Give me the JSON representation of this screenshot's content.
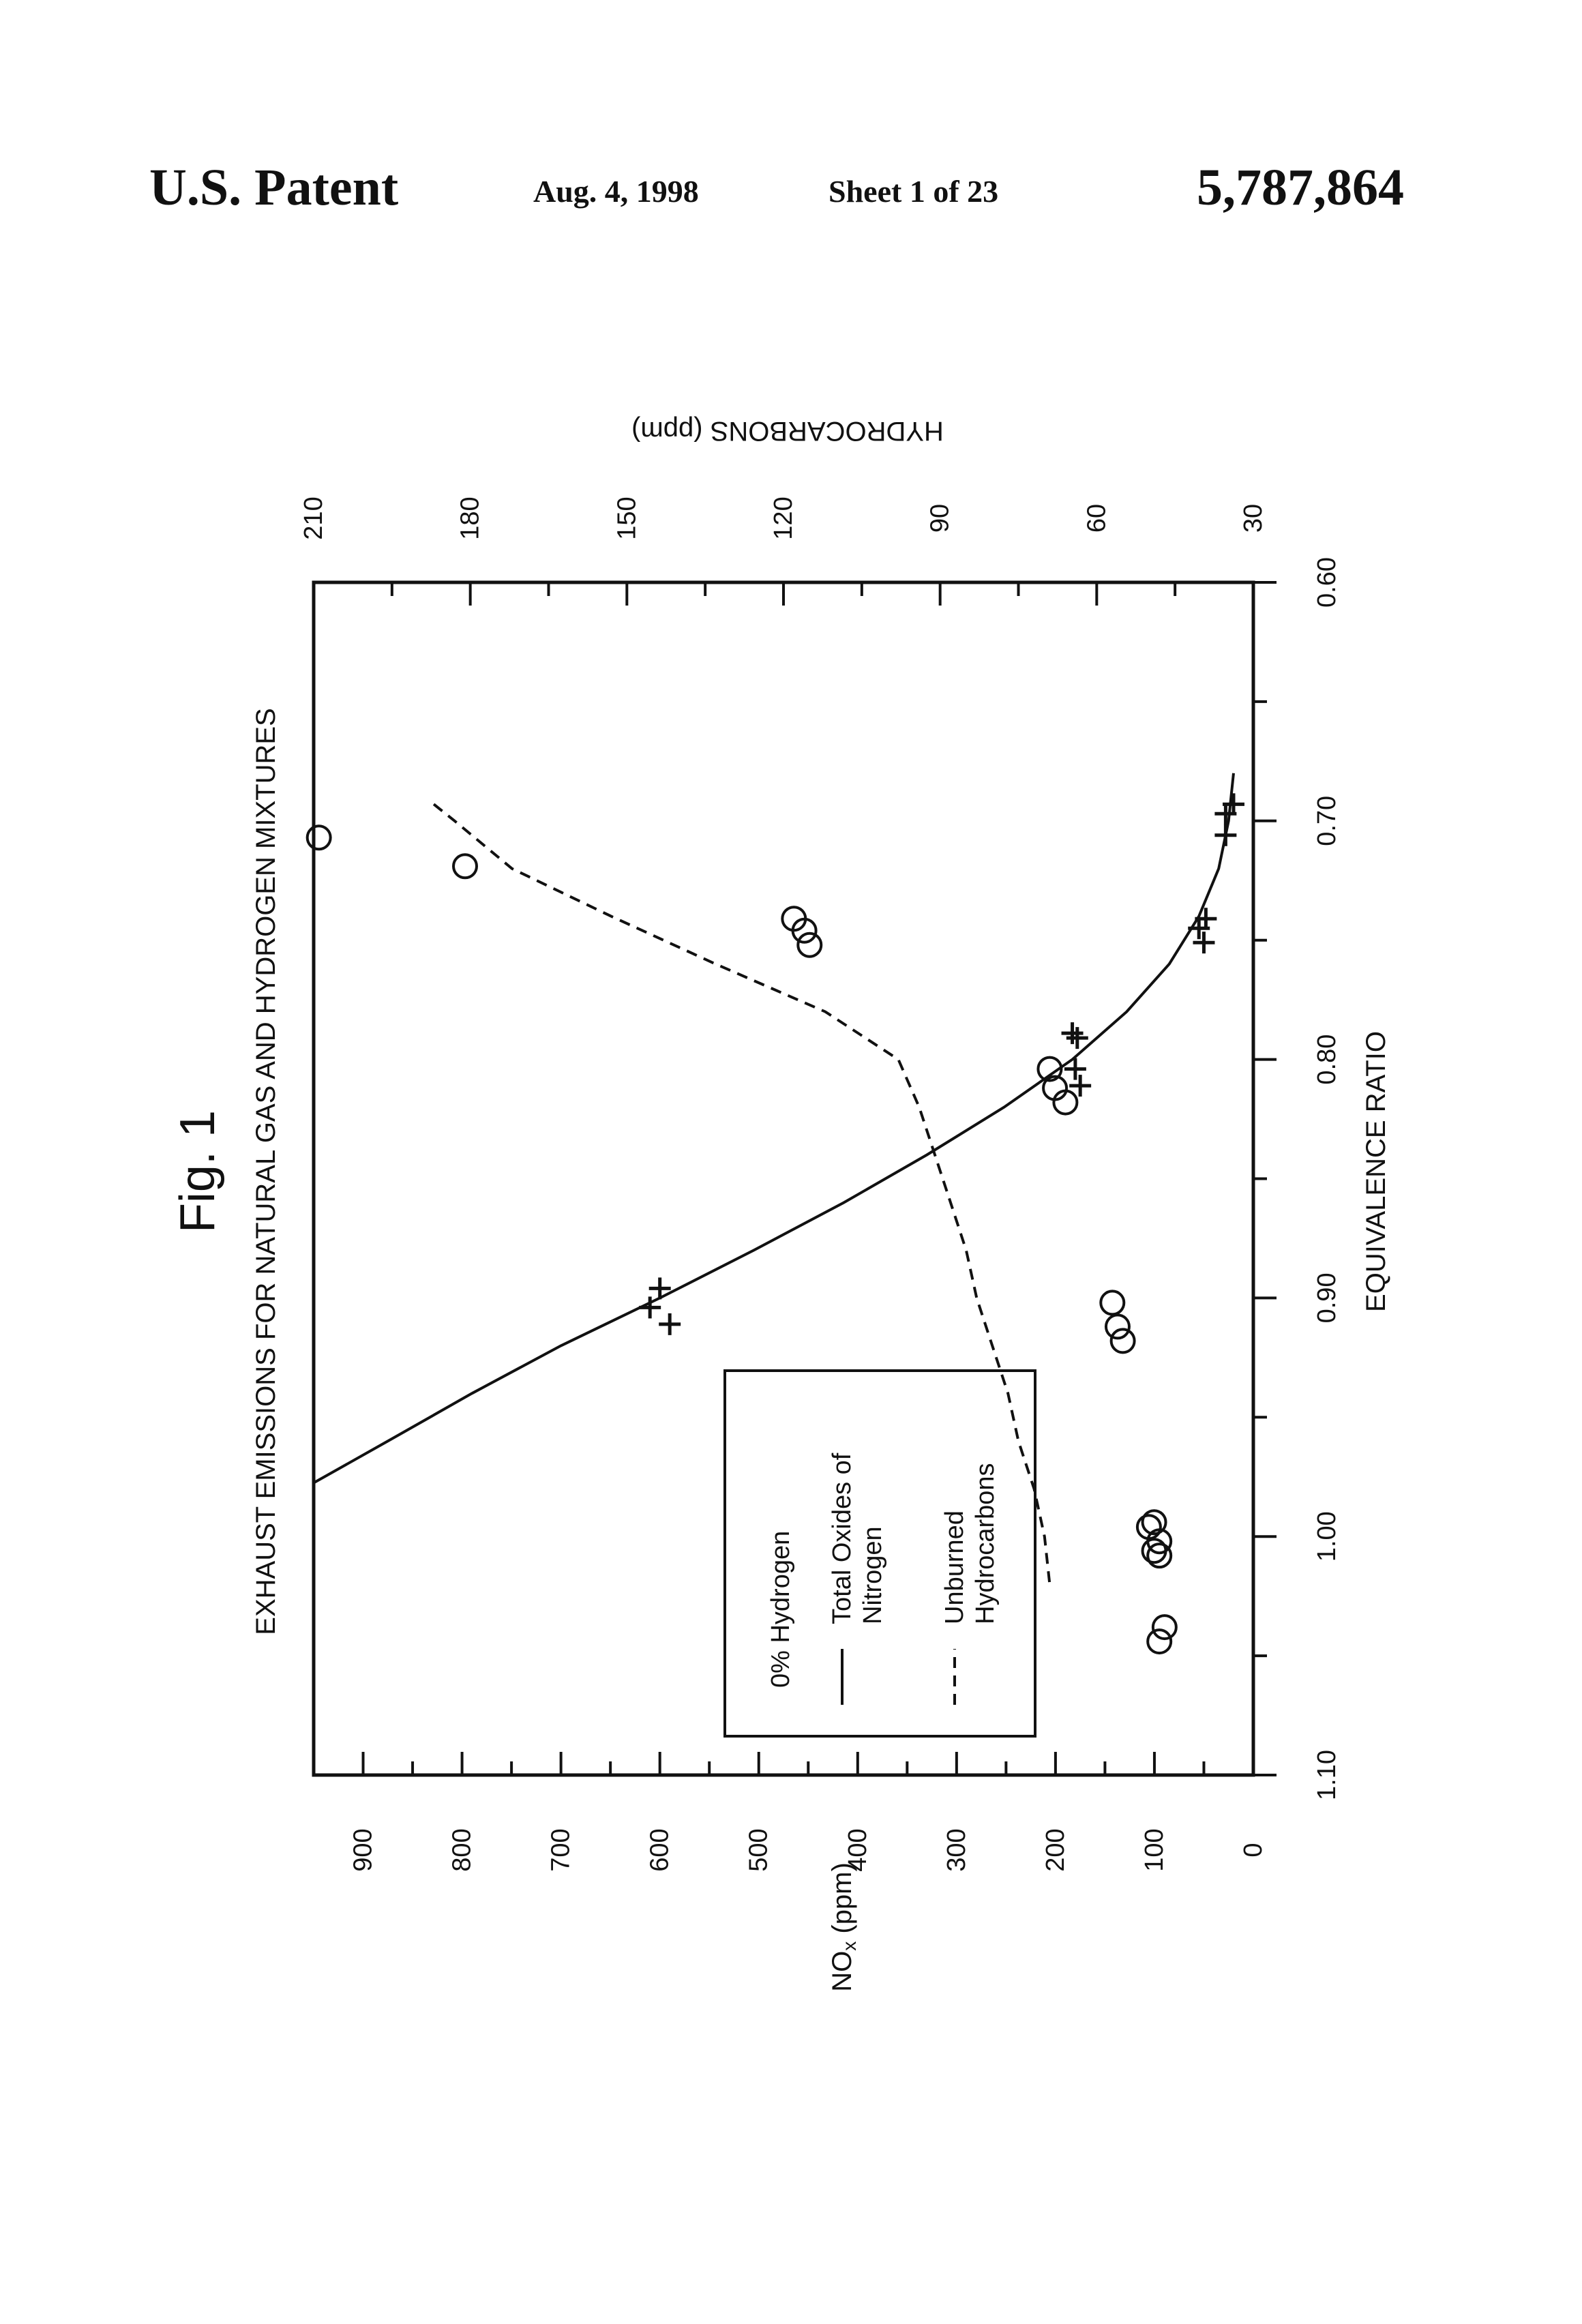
{
  "header": {
    "patent": "U.S. Patent",
    "date": "Aug. 4, 1998",
    "sheet": "Sheet 1 of 23",
    "number": "5,787,864"
  },
  "figure": {
    "label": "Fig. 1",
    "title": "EXHAUST EMISSIONS FOR NATURAL GAS AND HYDROGEN MIXTURES"
  },
  "chart_data": {
    "type": "line",
    "title": "EXHAUST EMISSIONS FOR NATURAL GAS AND HYDROGEN MIXTURES",
    "orientation": "figure printed rotated 90 degrees counter-clockwise",
    "xlabel": "EQUIVALENCE RATIO",
    "ylabel_left": "NOx (ppm)",
    "ylabel_right": "HYDROCARBONS (ppm)",
    "xlim": [
      0.6,
      1.1
    ],
    "x_reversed": true,
    "ylim_left": [
      0,
      950
    ],
    "ylim_right": [
      30,
      210
    ],
    "x_ticks": [
      "0.60",
      "0.70",
      "0.80",
      "0.90",
      "1.00",
      "1.10"
    ],
    "y_left_ticks": [
      "0",
      "100",
      "200",
      "300",
      "400",
      "500",
      "600",
      "700",
      "800",
      "900"
    ],
    "y_right_ticks": [
      "30",
      "60",
      "90",
      "120",
      "150",
      "180",
      "210"
    ],
    "grid": false,
    "legend": {
      "title": "0% Hydrogen",
      "entries": [
        {
          "symbol": "solid",
          "label_lines": [
            "Total Oxides of",
            "Nitrogen"
          ]
        },
        {
          "symbol": "dashed",
          "label_lines": [
            "Unburned",
            "Hydrocarbons"
          ]
        }
      ]
    },
    "series": [
      {
        "name": "Total Oxides of Nitrogen",
        "axis": "left",
        "marker": "+",
        "line": "solid",
        "curve": [
          [
            0.68,
            20
          ],
          [
            0.7,
            25
          ],
          [
            0.72,
            35
          ],
          [
            0.74,
            55
          ],
          [
            0.76,
            85
          ],
          [
            0.78,
            128
          ],
          [
            0.8,
            183
          ],
          [
            0.82,
            252
          ],
          [
            0.84,
            330
          ],
          [
            0.86,
            414
          ],
          [
            0.88,
            505
          ],
          [
            0.9,
            600
          ],
          [
            0.92,
            700
          ],
          [
            0.94,
            790
          ],
          [
            0.96,
            875
          ],
          [
            0.9775,
            950
          ]
        ],
        "points": [
          [
            0.693,
            20
          ],
          [
            0.697,
            28
          ],
          [
            0.706,
            28
          ],
          [
            0.741,
            48
          ],
          [
            0.745,
            55
          ],
          [
            0.751,
            50
          ],
          [
            0.789,
            183
          ],
          [
            0.791,
            178
          ],
          [
            0.804,
            180
          ],
          [
            0.811,
            175
          ],
          [
            0.896,
            600
          ],
          [
            0.904,
            610
          ],
          [
            0.911,
            590
          ]
        ]
      },
      {
        "name": "Unburned Hydrocarbons",
        "axis": "right",
        "marker": "o",
        "line": "dashed",
        "curve": [
          [
            0.693,
            187
          ],
          [
            0.7,
            183
          ],
          [
            0.72,
            172
          ],
          [
            0.74,
            153
          ],
          [
            0.76,
            133
          ],
          [
            0.78,
            112
          ],
          [
            0.8,
            98
          ],
          [
            0.82,
            94
          ],
          [
            0.84,
            91
          ],
          [
            0.86,
            88
          ],
          [
            0.88,
            85
          ],
          [
            0.9,
            83
          ],
          [
            0.92,
            80
          ],
          [
            0.94,
            77
          ],
          [
            0.96,
            75
          ],
          [
            0.98,
            72
          ],
          [
            1.0,
            70
          ],
          [
            1.02,
            69
          ]
        ],
        "points": [
          [
            0.707,
            209
          ],
          [
            0.719,
            181
          ],
          [
            0.741,
            118
          ],
          [
            0.746,
            116
          ],
          [
            0.752,
            115
          ],
          [
            0.804,
            69
          ],
          [
            0.812,
            68
          ],
          [
            0.818,
            66
          ],
          [
            0.902,
            57
          ],
          [
            0.912,
            56
          ],
          [
            0.918,
            55
          ],
          [
            0.994,
            49
          ],
          [
            0.996,
            50
          ],
          [
            1.002,
            48
          ],
          [
            1.006,
            49
          ],
          [
            1.008,
            48
          ],
          [
            1.038,
            47
          ],
          [
            1.044,
            48
          ]
        ]
      }
    ]
  }
}
